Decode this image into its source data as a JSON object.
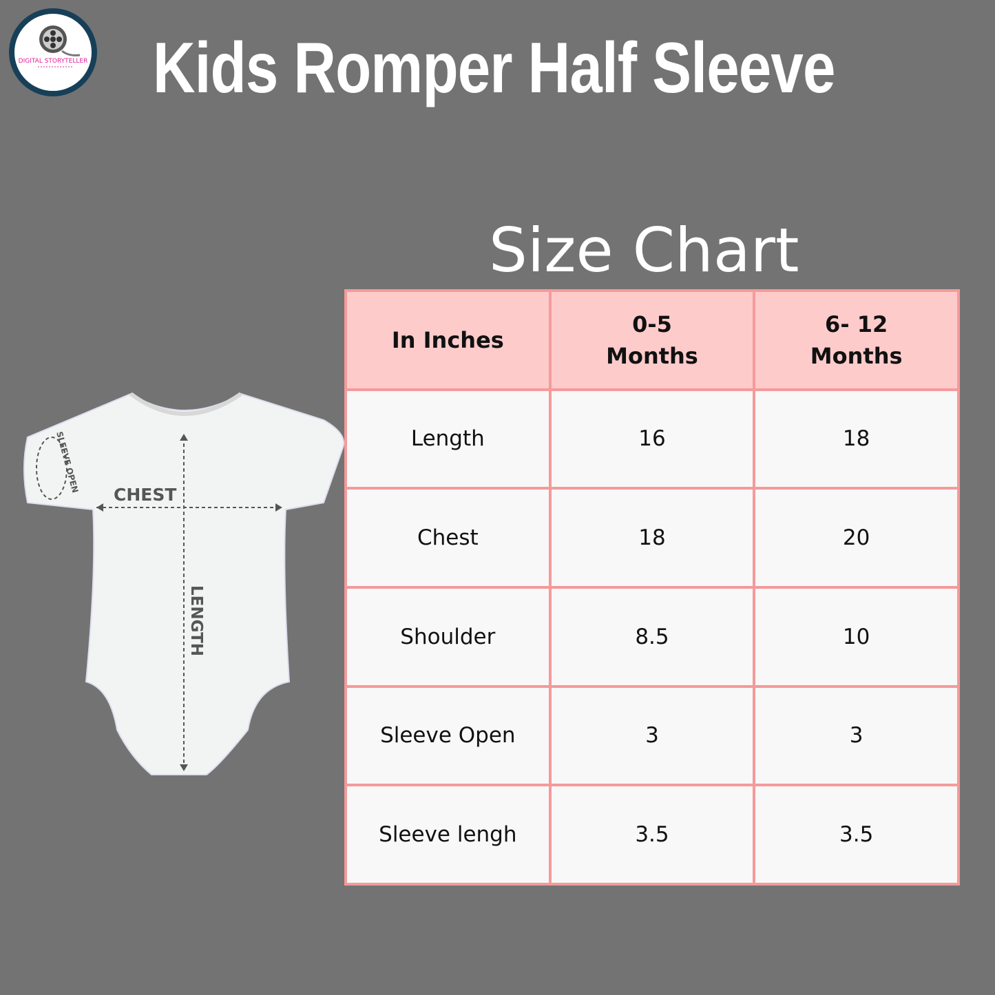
{
  "logo": {
    "text": "DIGITAL STORYTELLER"
  },
  "title": "Kids Romper Half Sleeve",
  "subtitle": "Size Chart",
  "image_labels": {
    "chest": "CHEST",
    "length": "LENGTH",
    "sleeve_open": "SLEEVE OPEN"
  },
  "table": {
    "headers": [
      [
        "In Inches"
      ],
      [
        "0-5",
        "Months"
      ],
      [
        "6- 12",
        "Months"
      ]
    ],
    "rows": [
      [
        "Length",
        "16",
        "18"
      ],
      [
        "Chest",
        "18",
        "20"
      ],
      [
        "Shoulder",
        "8.5",
        "10"
      ],
      [
        "Sleeve Open",
        "3",
        "3"
      ],
      [
        "Sleeve lengh",
        "3.5",
        "3.5"
      ]
    ]
  },
  "colors": {
    "background": "#737373",
    "header_fill": "#fecbcb",
    "border": "#f59a9a",
    "logo_ring": "#173f58",
    "logo_text": "#e0209a"
  }
}
